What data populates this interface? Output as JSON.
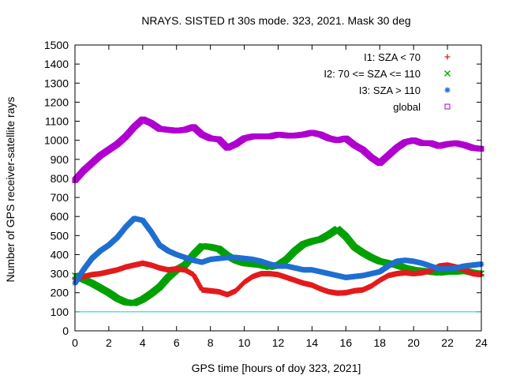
{
  "chart_data": {
    "type": "scatter",
    "title": "NRAYS. SISTED rt 30s mode. 323, 2021. Mask 30 deg",
    "xlabel": "GPS time [hours of doy 323, 2021]",
    "ylabel": "Number of GPS receiver-satellite rays",
    "xlim": [
      0,
      24
    ],
    "ylim": [
      0,
      1500
    ],
    "x_ticks": [
      0,
      2,
      4,
      6,
      8,
      10,
      12,
      14,
      16,
      18,
      20,
      22,
      24
    ],
    "y_ticks": [
      0,
      100,
      200,
      300,
      400,
      500,
      600,
      700,
      800,
      900,
      1000,
      1100,
      1200,
      1300,
      1400,
      1500
    ],
    "grid": false,
    "legend_position": "top-right",
    "reference_line": {
      "y": 100,
      "color": "#00d0d0"
    },
    "series": [
      {
        "name": "I1: SZA < 70",
        "marker": "plus",
        "color": "#e41a1c",
        "x": [
          0,
          0.5,
          1,
          1.5,
          2,
          2.5,
          3,
          3.5,
          4,
          4.5,
          5,
          5.5,
          6,
          6.5,
          7,
          7.5,
          8,
          8.5,
          9,
          9.5,
          10,
          10.5,
          11,
          11.5,
          12,
          12.5,
          13,
          13.5,
          14,
          14.5,
          15,
          15.5,
          16,
          16.5,
          17,
          17.5,
          18,
          18.5,
          19,
          19.5,
          20,
          20.5,
          21,
          21.5,
          22,
          22.5,
          23,
          23.5,
          24
        ],
        "y": [
          270,
          285,
          295,
          300,
          310,
          320,
          335,
          345,
          355,
          345,
          330,
          320,
          325,
          320,
          295,
          215,
          210,
          205,
          190,
          210,
          255,
          285,
          300,
          300,
          295,
          280,
          265,
          250,
          240,
          220,
          205,
          198,
          200,
          210,
          215,
          235,
          265,
          290,
          300,
          305,
          300,
          305,
          315,
          340,
          345,
          335,
          320,
          300,
          295
        ]
      },
      {
        "name": "I2: 70 <= SZA <= 110",
        "marker": "cross",
        "color": "#00a000",
        "x": [
          0,
          0.5,
          1,
          1.5,
          2,
          2.5,
          3,
          3.5,
          4,
          4.5,
          5,
          5.5,
          6,
          6.5,
          7,
          7.5,
          8,
          8.5,
          9,
          9.5,
          10,
          10.5,
          11,
          11.5,
          12,
          12.5,
          13,
          13.5,
          14,
          14.5,
          15,
          15.5,
          16,
          16.5,
          17,
          17.5,
          18,
          18.5,
          19,
          19.5,
          20,
          20.5,
          21,
          21.5,
          22,
          22.5,
          23,
          23.5,
          24
        ],
        "y": [
          290,
          270,
          250,
          225,
          200,
          170,
          150,
          145,
          165,
          195,
          230,
          280,
          320,
          345,
          400,
          445,
          440,
          430,
          395,
          370,
          355,
          350,
          345,
          335,
          345,
          375,
          420,
          455,
          470,
          480,
          505,
          535,
          495,
          440,
          410,
          385,
          365,
          355,
          345,
          330,
          320,
          315,
          310,
          305,
          310,
          310,
          315,
          305,
          300
        ]
      },
      {
        "name": "I3: SZA > 110",
        "marker": "star",
        "color": "#1f6fd0",
        "x": [
          0,
          0.5,
          1,
          1.5,
          2,
          2.5,
          3,
          3.5,
          4,
          4.5,
          5,
          5.5,
          6,
          6.5,
          7,
          7.5,
          8,
          8.5,
          9,
          9.5,
          10,
          10.5,
          11,
          11.5,
          12,
          12.5,
          13,
          13.5,
          14,
          14.5,
          15,
          15.5,
          16,
          16.5,
          17,
          17.5,
          18,
          18.5,
          19,
          19.5,
          20,
          20.5,
          21,
          21.5,
          22,
          22.5,
          23,
          23.5,
          24
        ],
        "y": [
          250,
          320,
          380,
          420,
          450,
          490,
          545,
          590,
          580,
          520,
          450,
          420,
          400,
          385,
          370,
          360,
          375,
          380,
          385,
          385,
          380,
          375,
          365,
          350,
          340,
          340,
          330,
          320,
          320,
          310,
          300,
          290,
          280,
          285,
          290,
          300,
          310,
          340,
          365,
          370,
          365,
          355,
          340,
          325,
          325,
          330,
          340,
          345,
          350
        ]
      },
      {
        "name": "global",
        "marker": "square",
        "color": "#b000d0",
        "x": [
          0,
          0.5,
          1,
          1.5,
          2,
          2.5,
          3,
          3.5,
          4,
          4.5,
          5,
          5.5,
          6,
          6.5,
          7,
          7.5,
          8,
          8.5,
          9,
          9.5,
          10,
          10.5,
          11,
          11.5,
          12,
          12.5,
          13,
          13.5,
          14,
          14.5,
          15,
          15.5,
          16,
          16.5,
          17,
          17.5,
          18,
          18.5,
          19,
          19.5,
          20,
          20.5,
          21,
          21.5,
          22,
          22.5,
          23,
          23.5,
          24
        ],
        "y": [
          790,
          840,
          880,
          920,
          950,
          980,
          1020,
          1070,
          1110,
          1090,
          1060,
          1055,
          1050,
          1055,
          1070,
          1030,
          1010,
          1005,
          960,
          980,
          1010,
          1020,
          1020,
          1020,
          1030,
          1025,
          1025,
          1030,
          1040,
          1030,
          1010,
          1000,
          1010,
          975,
          950,
          910,
          880,
          920,
          960,
          990,
          1000,
          985,
          985,
          970,
          980,
          985,
          975,
          960,
          955
        ]
      }
    ]
  }
}
